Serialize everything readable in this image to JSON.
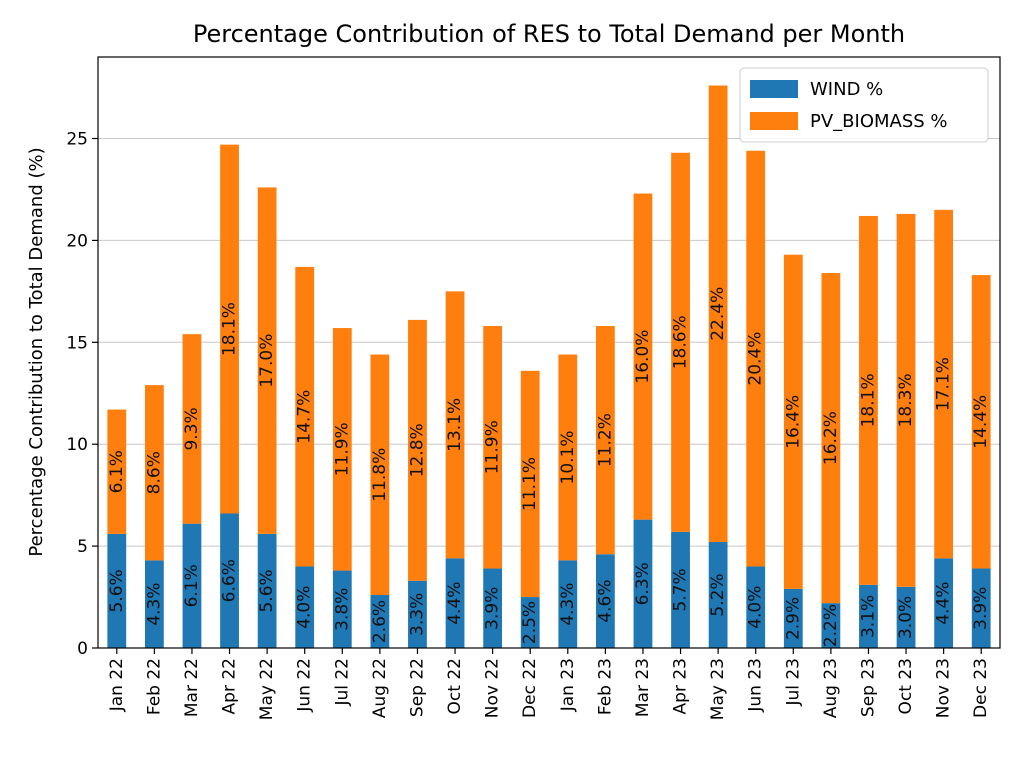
{
  "chart_data": {
    "type": "bar",
    "stacked": true,
    "title": "Percentage Contribution of RES to Total Demand per Month",
    "xlabel": "",
    "ylabel": "Percentage Contribution to Total Demand (%)",
    "ylim": [
      0,
      29
    ],
    "yticks": [
      0,
      5,
      10,
      15,
      20,
      25
    ],
    "grid": "y",
    "legend_position": "top-right",
    "categories": [
      "Jan 22",
      "Feb 22",
      "Mar 22",
      "Apr 22",
      "May 22",
      "Jun 22",
      "Jul 22",
      "Aug 22",
      "Sep 22",
      "Oct 22",
      "Nov 22",
      "Dec 22",
      "Jan 23",
      "Feb 23",
      "Mar 23",
      "Apr 23",
      "May 23",
      "Jun 23",
      "Jul 23",
      "Aug 23",
      "Sep 23",
      "Oct 23",
      "Nov 23",
      "Dec 23"
    ],
    "series": [
      {
        "name": "WIND %",
        "color": "#1f77b4",
        "values": [
          5.6,
          4.3,
          6.1,
          6.6,
          5.6,
          4.0,
          3.8,
          2.6,
          3.3,
          4.4,
          3.9,
          2.5,
          4.3,
          4.6,
          6.3,
          5.7,
          5.2,
          4.0,
          2.9,
          2.2,
          3.1,
          3.0,
          4.4,
          3.9
        ],
        "labels": [
          "5.6%",
          "4.3%",
          "6.1%",
          "6.6%",
          "5.6%",
          "4.0%",
          "3.8%",
          "2.6%",
          "3.3%",
          "4.4%",
          "3.9%",
          "2.5%",
          "4.3%",
          "4.6%",
          "6.3%",
          "5.7%",
          "5.2%",
          "4.0%",
          "2.9%",
          "2.2%",
          "3.1%",
          "3.0%",
          "4.4%",
          "3.9%"
        ]
      },
      {
        "name": "PV_BIOMASS %",
        "color": "#ff7f0e",
        "values": [
          6.1,
          8.6,
          9.3,
          18.1,
          17.0,
          14.7,
          11.9,
          11.8,
          12.8,
          13.1,
          11.9,
          11.1,
          10.1,
          11.2,
          16.0,
          18.6,
          22.4,
          20.4,
          16.4,
          16.2,
          18.1,
          18.3,
          17.1,
          14.4
        ],
        "labels": [
          "6.1%",
          "8.6%",
          "9.3%",
          "18.1%",
          "17.0%",
          "14.7%",
          "11.9%",
          "11.8%",
          "12.8%",
          "13.1%",
          "11.9%",
          "11.1%",
          "10.1%",
          "11.2%",
          "16.0%",
          "18.6%",
          "22.4%",
          "20.4%",
          "16.4%",
          "16.2%",
          "18.1%",
          "18.3%",
          "17.1%",
          "14.4%"
        ]
      }
    ]
  }
}
